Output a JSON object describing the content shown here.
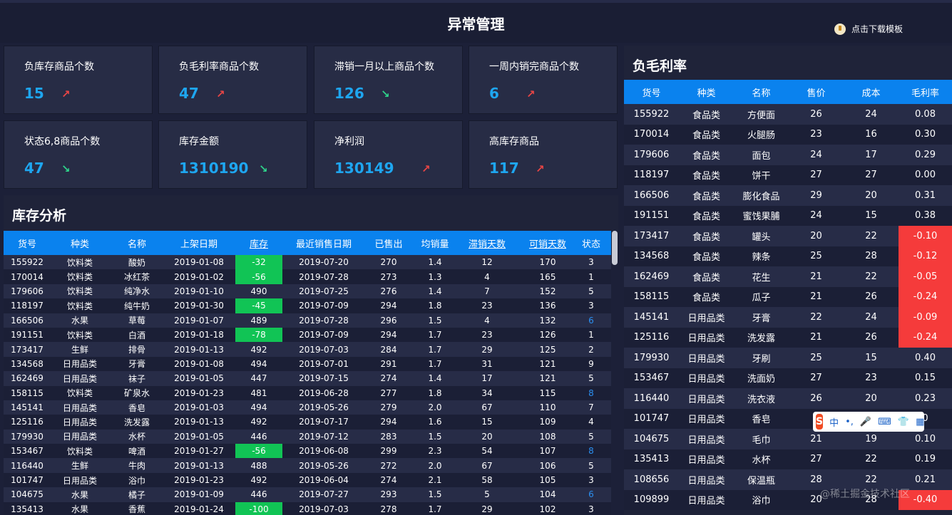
{
  "header": {
    "title": "异常管理",
    "download": "点击下载模板"
  },
  "cards": [
    {
      "label": "负库存商品个数",
      "value": "15",
      "arrow": "↗",
      "dir": "up"
    },
    {
      "label": "负毛利率商品个数",
      "value": "47",
      "arrow": "↗",
      "dir": "up"
    },
    {
      "label": "滞销一月以上商品个数",
      "value": "126",
      "arrow": "↘",
      "dir": "down"
    },
    {
      "label": "一周内销完商品个数",
      "value": "6",
      "arrow": "↗",
      "dir": "up"
    },
    {
      "label": "状态6,8商品个数",
      "value": "47",
      "arrow": "↘",
      "dir": "down"
    },
    {
      "label": "库存金额",
      "value": "1310190",
      "arrow": "↘",
      "dir": "down"
    },
    {
      "label": "净利润",
      "value": "130149",
      "arrow": "↗",
      "dir": "up"
    },
    {
      "label": "高库存商品",
      "value": "117",
      "arrow": "↗",
      "dir": "up"
    }
  ],
  "inventory": {
    "title": "库存分析",
    "columns": [
      "货号",
      "种类",
      "名称",
      "上架日期",
      "库存",
      "最近销售日期",
      "已售出",
      "均销量",
      "滞销天数",
      "可销天数",
      "状态"
    ],
    "rows": [
      [
        "155922",
        "饮料类",
        "酸奶",
        "2019-01-08",
        "-32",
        "2019-07-20",
        "270",
        "1.4",
        "12",
        "170",
        "3"
      ],
      [
        "170014",
        "饮料类",
        "冰红茶",
        "2019-01-02",
        "-56",
        "2019-07-28",
        "273",
        "1.3",
        "4",
        "165",
        "1"
      ],
      [
        "179606",
        "饮料类",
        "纯净水",
        "2019-01-10",
        "490",
        "2019-07-25",
        "276",
        "1.4",
        "7",
        "152",
        "5"
      ],
      [
        "118197",
        "饮料类",
        "纯牛奶",
        "2019-01-30",
        "-45",
        "2019-07-09",
        "294",
        "1.8",
        "23",
        "136",
        "3"
      ],
      [
        "166506",
        "水果",
        "草莓",
        "2019-01-07",
        "489",
        "2019-07-28",
        "296",
        "1.5",
        "4",
        "132",
        "6"
      ],
      [
        "191151",
        "饮料类",
        "白酒",
        "2019-01-18",
        "-78",
        "2019-07-09",
        "294",
        "1.7",
        "23",
        "126",
        "1"
      ],
      [
        "173417",
        "生鲜",
        "排骨",
        "2019-01-13",
        "492",
        "2019-07-03",
        "284",
        "1.7",
        "29",
        "125",
        "2"
      ],
      [
        "134568",
        "日用品类",
        "牙膏",
        "2019-01-08",
        "494",
        "2019-07-01",
        "291",
        "1.7",
        "31",
        "121",
        "9"
      ],
      [
        "162469",
        "日用品类",
        "袜子",
        "2019-01-05",
        "447",
        "2019-07-15",
        "274",
        "1.4",
        "17",
        "121",
        "5"
      ],
      [
        "158115",
        "饮料类",
        "矿泉水",
        "2019-01-23",
        "481",
        "2019-06-28",
        "277",
        "1.8",
        "34",
        "115",
        "8"
      ],
      [
        "145141",
        "日用品类",
        "香皂",
        "2019-01-03",
        "494",
        "2019-05-26",
        "279",
        "2.0",
        "67",
        "110",
        "7"
      ],
      [
        "125116",
        "日用品类",
        "洗发露",
        "2019-01-13",
        "492",
        "2019-07-17",
        "294",
        "1.6",
        "15",
        "109",
        "4"
      ],
      [
        "179930",
        "日用品类",
        "水杯",
        "2019-01-05",
        "446",
        "2019-07-12",
        "283",
        "1.5",
        "20",
        "108",
        "5"
      ],
      [
        "153467",
        "饮料类",
        "啤酒",
        "2019-01-27",
        "-56",
        "2019-06-08",
        "299",
        "2.3",
        "54",
        "107",
        "8"
      ],
      [
        "116440",
        "生鲜",
        "牛肉",
        "2019-01-13",
        "488",
        "2019-05-26",
        "272",
        "2.0",
        "67",
        "106",
        "5"
      ],
      [
        "101747",
        "日用品类",
        "浴巾",
        "2019-01-23",
        "492",
        "2019-06-04",
        "274",
        "2.1",
        "58",
        "105",
        "3"
      ],
      [
        "104675",
        "水果",
        "橘子",
        "2019-01-09",
        "446",
        "2019-07-27",
        "293",
        "1.5",
        "5",
        "104",
        "6"
      ],
      [
        "135413",
        "水果",
        "香蕉",
        "2019-01-24",
        "-100",
        "2019-07-03",
        "278",
        "1.7",
        "29",
        "102",
        "3"
      ]
    ]
  },
  "margin": {
    "title": "负毛利率",
    "columns": [
      "货号",
      "种类",
      "名称",
      "售价",
      "成本",
      "毛利率"
    ],
    "rows": [
      [
        "155922",
        "食品类",
        "方便面",
        "26",
        "24",
        "0.08"
      ],
      [
        "170014",
        "食品类",
        "火腿肠",
        "23",
        "16",
        "0.30"
      ],
      [
        "179606",
        "食品类",
        "面包",
        "24",
        "17",
        "0.29"
      ],
      [
        "118197",
        "食品类",
        "饼干",
        "27",
        "27",
        "0.00"
      ],
      [
        "166506",
        "食品类",
        "膨化食品",
        "29",
        "20",
        "0.31"
      ],
      [
        "191151",
        "食品类",
        "蜜饯果脯",
        "24",
        "15",
        "0.38"
      ],
      [
        "173417",
        "食品类",
        "罐头",
        "20",
        "22",
        "-0.10"
      ],
      [
        "134568",
        "食品类",
        "辣条",
        "25",
        "28",
        "-0.12"
      ],
      [
        "162469",
        "食品类",
        "花生",
        "21",
        "22",
        "-0.05"
      ],
      [
        "158115",
        "食品类",
        "瓜子",
        "21",
        "26",
        "-0.24"
      ],
      [
        "145141",
        "日用品类",
        "牙膏",
        "22",
        "24",
        "-0.09"
      ],
      [
        "125116",
        "日用品类",
        "洗发露",
        "21",
        "26",
        "-0.24"
      ],
      [
        "179930",
        "日用品类",
        "牙刷",
        "25",
        "15",
        "0.40"
      ],
      [
        "153467",
        "日用品类",
        "洗面奶",
        "27",
        "23",
        "0.15"
      ],
      [
        "116440",
        "日用品类",
        "洗衣液",
        "26",
        "20",
        "0.23"
      ],
      [
        "101747",
        "日用品类",
        "香皂",
        "2",
        "",
        "0"
      ],
      [
        "104675",
        "日用品类",
        "毛巾",
        "21",
        "19",
        "0.10"
      ],
      [
        "135413",
        "日用品类",
        "水杯",
        "27",
        "22",
        "0.19"
      ],
      [
        "108656",
        "日用品类",
        "保温瓶",
        "28",
        "22",
        "0.21"
      ],
      [
        "109899",
        "日用品类",
        "浴巾",
        "20",
        "28",
        "-0.40"
      ]
    ]
  },
  "ime": {
    "items": [
      "中",
      "•,",
      "🎤",
      "⌨",
      "👕",
      "▦"
    ]
  },
  "watermark": "@稀土掘金技术社区"
}
